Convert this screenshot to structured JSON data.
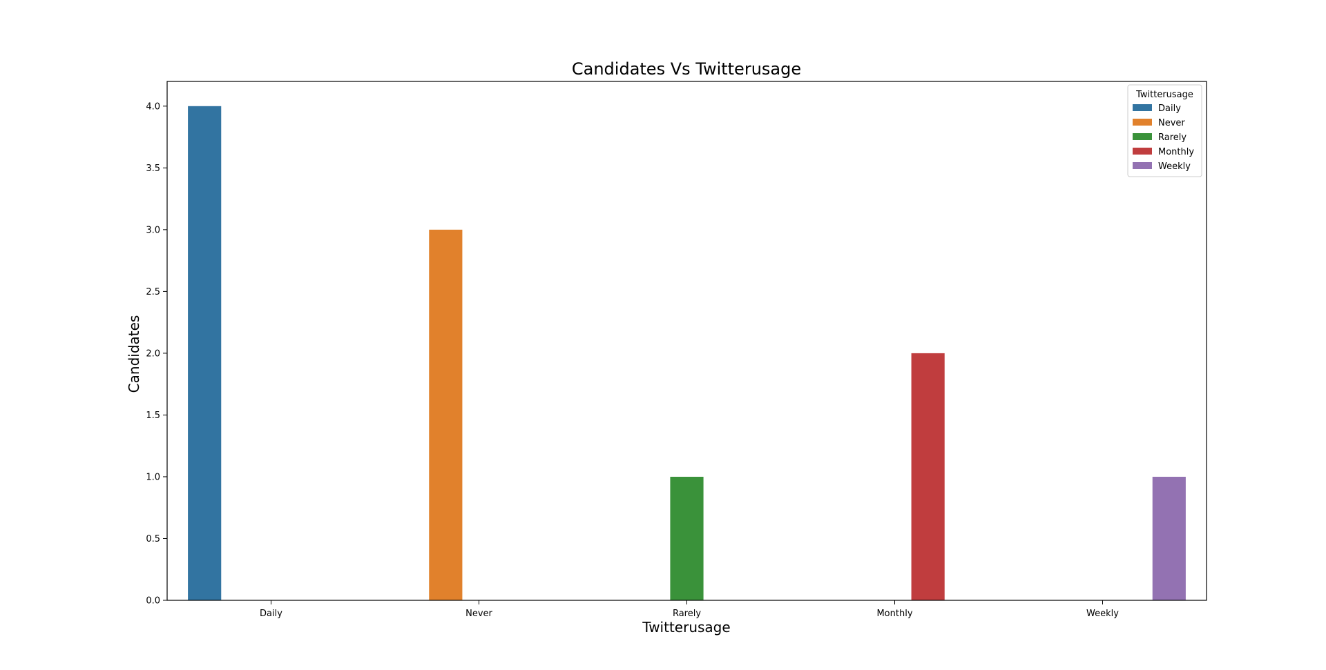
{
  "chart_data": {
    "type": "bar",
    "title": "Candidates Vs Twitterusage",
    "xlabel": "Twitterusage",
    "ylabel": "Candidates",
    "categories": [
      "Daily",
      "Never",
      "Rarely",
      "Monthly",
      "Weekly"
    ],
    "yticks": [
      "0.0",
      "0.5",
      "1.0",
      "1.5",
      "2.0",
      "2.5",
      "3.0",
      "3.5",
      "4.0"
    ],
    "ylim": [
      0,
      4.2
    ],
    "grid": false,
    "legend": {
      "title": "Twitterusage",
      "position": "top-right"
    },
    "series": [
      {
        "name": "Daily",
        "color": "#3274a1",
        "values": [
          4,
          0,
          0,
          0,
          0
        ]
      },
      {
        "name": "Never",
        "color": "#e1812c",
        "values": [
          0,
          3,
          0,
          0,
          0
        ]
      },
      {
        "name": "Rarely",
        "color": "#3a923a",
        "values": [
          0,
          0,
          1,
          0,
          0
        ]
      },
      {
        "name": "Monthly",
        "color": "#c03d3e",
        "values": [
          0,
          0,
          0,
          2,
          0
        ]
      },
      {
        "name": "Weekly",
        "color": "#9372b2",
        "values": [
          0,
          0,
          0,
          0,
          1
        ]
      }
    ]
  }
}
